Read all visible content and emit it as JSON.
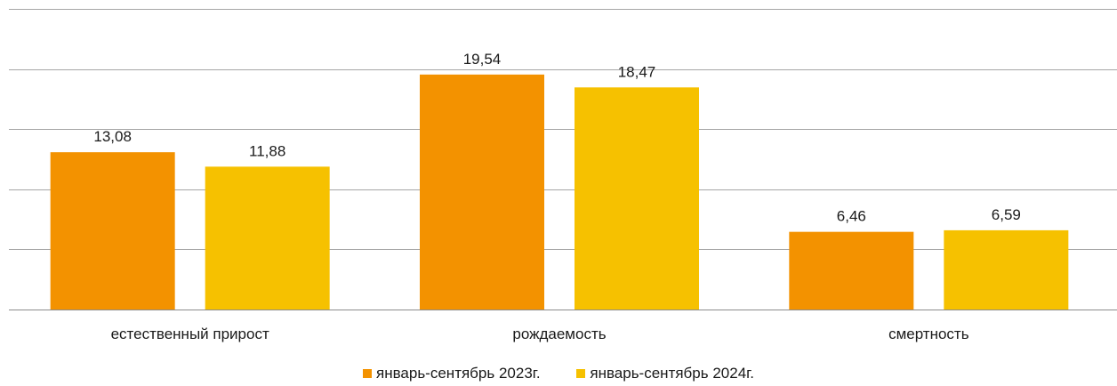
{
  "chart_data": {
    "type": "bar",
    "categories": [
      "естественный прирост",
      "рождаемость",
      "смертность"
    ],
    "series": [
      {
        "name": "январь-сентябрь 2023г.",
        "values": [
          13.08,
          19.54,
          6.46
        ],
        "labels": [
          "13,08",
          "19,54",
          "6,46"
        ],
        "color": "#F39200"
      },
      {
        "name": "январь-сентябрь 2024г.",
        "values": [
          11.88,
          18.47,
          6.59
        ],
        "labels": [
          "11,88",
          "18,47",
          "6,59"
        ],
        "color": "#F6C100"
      }
    ],
    "ylim": [
      0,
      25
    ],
    "grid": true,
    "legend_position": "bottom"
  }
}
